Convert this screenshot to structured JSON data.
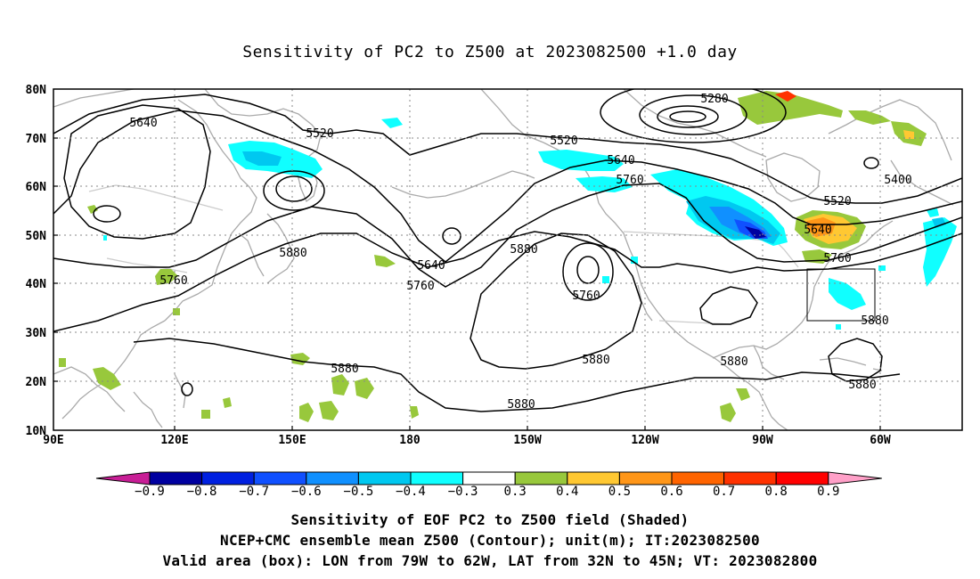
{
  "title": "Sensitivity of PC2 to Z500 at 2023082500 +1.0 day",
  "map": {
    "lat_labels": [
      "80N",
      "70N",
      "60N",
      "50N",
      "40N",
      "30N",
      "20N",
      "10N"
    ],
    "lon_labels": [
      "90E",
      "120E",
      "150E",
      "180",
      "150W",
      "120W",
      "90W",
      "60W"
    ],
    "contour_labels": [
      {
        "text": "5280"
      },
      {
        "text": "5640"
      },
      {
        "text": "5520"
      },
      {
        "text": "5520"
      },
      {
        "text": "5640"
      },
      {
        "text": "5760"
      },
      {
        "text": "5400"
      },
      {
        "text": "5520"
      },
      {
        "text": "5640"
      },
      {
        "text": "5760"
      },
      {
        "text": "5880"
      },
      {
        "text": "5640"
      },
      {
        "text": "5760"
      },
      {
        "text": "5880"
      },
      {
        "text": "5760"
      },
      {
        "text": "5760"
      },
      {
        "text": "5880"
      },
      {
        "text": "5880"
      },
      {
        "text": "5880"
      },
      {
        "text": "5880"
      },
      {
        "text": "5880"
      },
      {
        "text": "5880"
      }
    ],
    "valid_box": {
      "lon_from": "79W",
      "lon_to": "62W",
      "lat_from": "32N",
      "lat_to": "45N"
    }
  },
  "colorbar": {
    "labels": [
      "−0.9",
      "−0.8",
      "−0.7",
      "−0.6",
      "−0.5",
      "−0.4",
      "−0.3",
      "0.3",
      "0.4",
      "0.5",
      "0.6",
      "0.7",
      "0.8",
      "0.9"
    ],
    "colors": [
      "#0000a0",
      "#0020e0",
      "#1050ff",
      "#1090ff",
      "#00c8f0",
      "#10ffff",
      "#ffffff",
      "#98c83c",
      "#ffc832",
      "#ff9618",
      "#ff6400",
      "#ff3200",
      "#ff0000"
    ],
    "left_arrow_color": "#c81e96",
    "right_arrow_color": "#ffa0c8"
  },
  "footer": {
    "line1": "Sensitivity of EOF PC2 to Z500 field (Shaded)",
    "line2": "NCEP+CMC ensemble mean Z500 (Contour); unit(m); IT:2023082500",
    "line3": "Valid area (box): LON from 79W to 62W, LAT from 32N to 45N; VT: 2023082800"
  }
}
